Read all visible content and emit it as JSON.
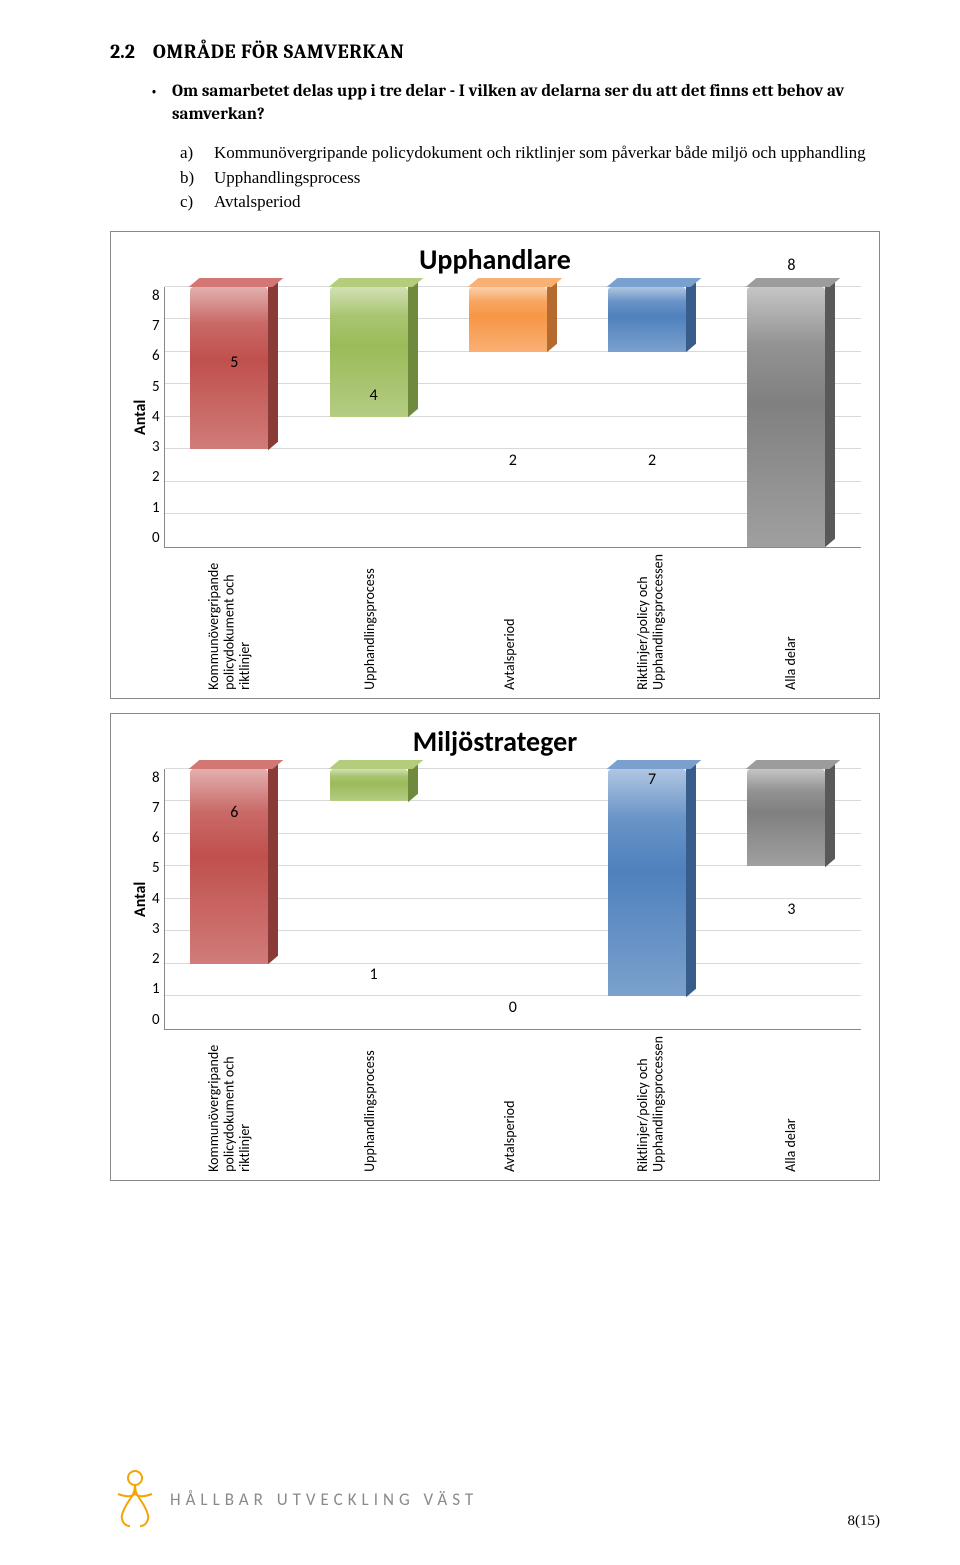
{
  "heading": {
    "number": "2.2",
    "text": "OMRÅDE FÖR SAMVERKAN"
  },
  "bullet": "Om samarbetet delas upp i tre delar - I vilken av delarna ser du att det finns ett behov av samverkan?",
  "options": {
    "a": "Kommunövergripande policydokument och riktlinjer som påverkar både miljö och upphandling",
    "b": "Upphandlingsprocess",
    "c": "Avtalsperiod"
  },
  "chart1": {
    "title": "Upphandlare",
    "ylabel": "Antal",
    "ymax": 8,
    "ystep": 1,
    "categories": [
      "Kommunövergripande\npolicydokument och\nriktlinjer",
      "Upphandlingsprocess",
      "Avtalsperiod",
      "Riktlinjer/policy och\nUpphandlingsprocessen",
      "Alla delar"
    ],
    "values": [
      5,
      4,
      2,
      2,
      8
    ],
    "colors": [
      {
        "front": "#c0504d",
        "side": "#8a3a37",
        "top": "#d37774"
      },
      {
        "front": "#9bbb59",
        "side": "#6f8a3d",
        "top": "#b3cd7d"
      },
      {
        "front": "#f79646",
        "side": "#b56b2f",
        "top": "#f9b074"
      },
      {
        "front": "#4f81bd",
        "side": "#385d8a",
        "top": "#7aa0d0"
      },
      {
        "front": "#808080",
        "side": "#595959",
        "top": "#9c9c9c"
      }
    ]
  },
  "chart2": {
    "title": "Miljöstrateger",
    "ylabel": "Antal",
    "ymax": 8,
    "ystep": 1,
    "categories": [
      "Kommunövergripande\npolicydokument och\nriktlinjer",
      "Upphandlingsprocess",
      "Avtalsperiod",
      "Riktlinjer/policy och\nUpphandlingsprocessen",
      "Alla delar"
    ],
    "values": [
      6,
      1,
      0,
      7,
      3
    ],
    "colors": [
      {
        "front": "#c0504d",
        "side": "#8a3a37",
        "top": "#d37774"
      },
      {
        "front": "#9bbb59",
        "side": "#6f8a3d",
        "top": "#b3cd7d"
      },
      {
        "front": "#f79646",
        "side": "#b56b2f",
        "top": "#f9b074"
      },
      {
        "front": "#4f81bd",
        "side": "#385d8a",
        "top": "#7aa0d0"
      },
      {
        "front": "#808080",
        "side": "#595959",
        "top": "#9c9c9c"
      }
    ]
  },
  "footer": {
    "brand": "HÅLLBAR UTVECKLING VÄST",
    "page": "8(15)"
  }
}
